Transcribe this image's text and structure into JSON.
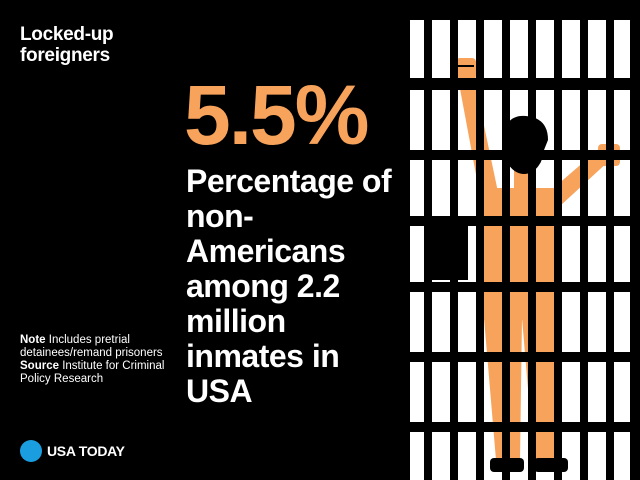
{
  "kicker": "Locked-up foreigners",
  "stat": {
    "value": "5.5%",
    "description": "Percentage of non-Americans among 2.2 million inmates in USA"
  },
  "notes": {
    "note_label": "Note",
    "note_text": "Includes pretrial detainees/remand prisoners",
    "source_label": "Source",
    "source_text": "Institute for Criminal Policy Research"
  },
  "brand": {
    "name": "USA TODAY",
    "icon": "usa-today-dot-logo",
    "color": "#1a9ee0"
  },
  "illustration": {
    "icon": "prisoner-behind-bars-icon",
    "figure_color": "#f7a35c",
    "bar_color": "#000000"
  },
  "colors": {
    "accent": "#f7a35c",
    "background": "#000000",
    "text": "#ffffff"
  }
}
